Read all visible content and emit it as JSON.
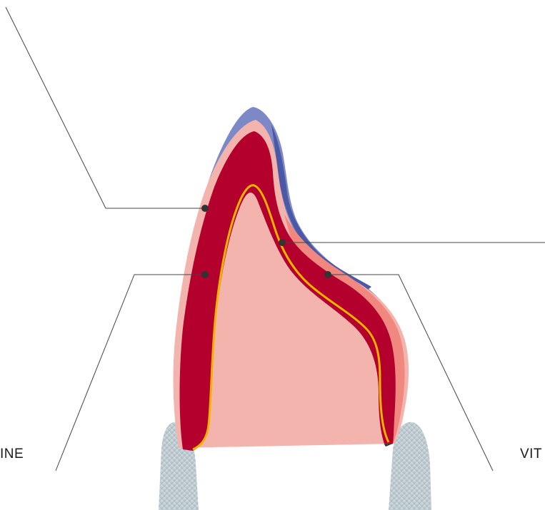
{
  "labels": {
    "left": "INE",
    "right": "VIT"
  },
  "colors": {
    "outer_blue": "#7b86c4",
    "outer_blue_dark": "#4a5aa8",
    "pink_layer": "#f4b2ad",
    "salmon_layer": "#f08a82",
    "red_core": "#b5002c",
    "yellow_line": "#f2b200",
    "shadow_brown": "#3a1e22",
    "shadow_grey": "#b9a6b0",
    "tooth_grey": "#cdd6da",
    "leader_line": "#444444",
    "dot": "#333333"
  }
}
